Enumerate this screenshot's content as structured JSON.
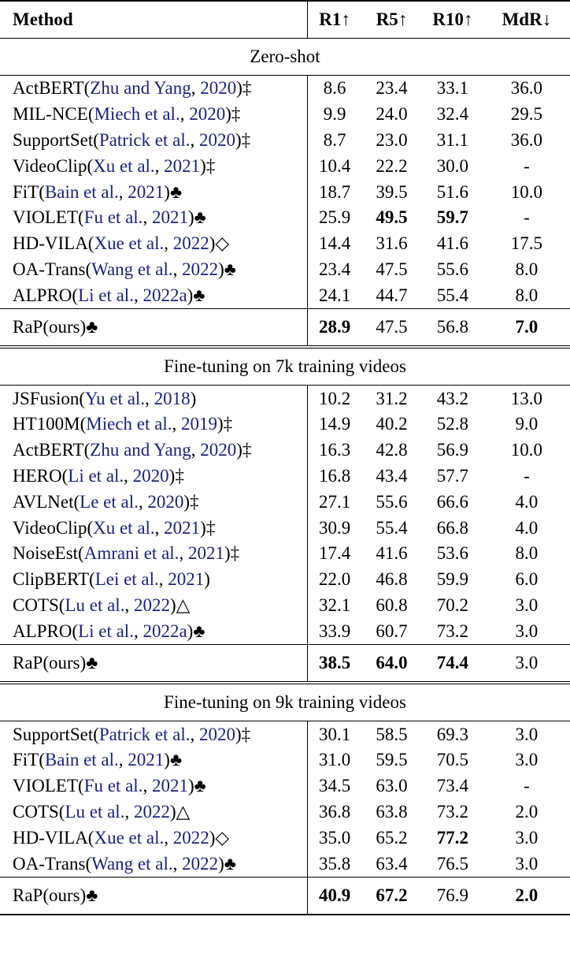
{
  "header": {
    "method": "Method",
    "r1": "R1↑",
    "r5": "R5↑",
    "r10": "R10↑",
    "mdr": "MdR↓"
  },
  "sections": [
    {
      "title": "Zero-shot",
      "rows": [
        {
          "name": "ActBERT(",
          "cite": "Zhu and Yang",
          "sep": ", ",
          "year": "2020",
          "tail": ")‡",
          "r1": "8.6",
          "r5": "23.4",
          "r10": "33.1",
          "mdr": "36.0"
        },
        {
          "name": "MIL-NCE(",
          "cite": "Miech et al.",
          "sep": ", ",
          "year": "2020",
          "tail": ")‡",
          "r1": "9.9",
          "r5": "24.0",
          "r10": "32.4",
          "mdr": "29.5"
        },
        {
          "name": "SupportSet(",
          "cite": "Patrick et al.",
          "sep": ", ",
          "year": "2020",
          "tail": ")‡",
          "r1": "8.7",
          "r5": "23.0",
          "r10": "31.1",
          "mdr": "36.0"
        },
        {
          "name": "VideoClip(",
          "cite": "Xu et al.",
          "sep": ", ",
          "year": "2021",
          "tail": ")‡",
          "r1": "10.4",
          "r5": "22.2",
          "r10": "30.0",
          "mdr": "-"
        },
        {
          "name": "FiT(",
          "cite": "Bain et al.",
          "sep": ", ",
          "year": "2021",
          "tail": ")♣",
          "r1": "18.7",
          "r5": "39.5",
          "r10": "51.6",
          "mdr": "10.0"
        },
        {
          "name": "VIOLET(",
          "cite": "Fu et al.",
          "sep": ", ",
          "year": "2021",
          "tail": ")♣",
          "r1": "25.9",
          "r5": "49.5",
          "r10": "59.7",
          "mdr": "-",
          "bold": [
            "r5",
            "r10"
          ]
        },
        {
          "name": "HD-VILA(",
          "cite": "Xue et al.",
          "sep": ", ",
          "year": "2022",
          "tail": ")◇",
          "r1": "14.4",
          "r5": "31.6",
          "r10": "41.6",
          "mdr": "17.5"
        },
        {
          "name": "OA-Trans(",
          "cite": "Wang et al.",
          "sep": ", ",
          "year": "2022",
          "tail": ")♣",
          "r1": "23.4",
          "r5": "47.5",
          "r10": "55.6",
          "mdr": "8.0"
        },
        {
          "name": "ALPRO(",
          "cite": "Li et al.",
          "sep": ", ",
          "year": "2022a",
          "tail": ")♣",
          "r1": "24.1",
          "r5": "44.7",
          "r10": "55.4",
          "mdr": "8.0"
        }
      ],
      "ours": {
        "name": "RaP(ours)♣",
        "r1": "28.9",
        "r5": "47.5",
        "r10": "56.8",
        "mdr": "7.0",
        "bold": [
          "r1",
          "mdr"
        ]
      }
    },
    {
      "title": "Fine-tuning on 7k training videos",
      "rows": [
        {
          "name": "JSFusion(",
          "cite": "Yu et al.",
          "sep": ", ",
          "year": "2018",
          "tail": ")",
          "r1": "10.2",
          "r5": "31.2",
          "r10": "43.2",
          "mdr": "13.0"
        },
        {
          "name": "HT100M(",
          "cite": "Miech et al.",
          "sep": ", ",
          "year": "2019",
          "tail": ")‡",
          "r1": "14.9",
          "r5": "40.2",
          "r10": "52.8",
          "mdr": "9.0"
        },
        {
          "name": "ActBERT(",
          "cite": "Zhu and Yang",
          "sep": ", ",
          "year": "2020",
          "tail": ")‡",
          "r1": "16.3",
          "r5": "42.8",
          "r10": "56.9",
          "mdr": "10.0"
        },
        {
          "name": "HERO(",
          "cite": "Li et al.",
          "sep": ", ",
          "year": "2020",
          "tail": ")‡",
          "r1": "16.8",
          "r5": "43.4",
          "r10": "57.7",
          "mdr": "-"
        },
        {
          "name": "AVLNet(",
          "cite": "Le et al.",
          "sep": ", ",
          "year": "2020",
          "tail": ")‡",
          "r1": "27.1",
          "r5": "55.6",
          "r10": "66.6",
          "mdr": "4.0"
        },
        {
          "name": "VideoClip(",
          "cite": "Xu et al.",
          "sep": ", ",
          "year": "2021",
          "tail": ")‡",
          "r1": "30.9",
          "r5": "55.4",
          "r10": "66.8",
          "mdr": "4.0"
        },
        {
          "name": "NoiseEst(",
          "cite": "Amrani et al.",
          "sep": ", ",
          "year": "2021",
          "tail": ")‡",
          "r1": "17.4",
          "r5": "41.6",
          "r10": "53.6",
          "mdr": "8.0"
        },
        {
          "name": "ClipBERT(",
          "cite": "Lei et al.",
          "sep": ", ",
          "year": "2021",
          "tail": ")",
          "r1": "22.0",
          "r5": "46.8",
          "r10": "59.9",
          "mdr": "6.0"
        },
        {
          "name": "COTS(",
          "cite": "Lu et al.",
          "sep": ", ",
          "year": "2022",
          "tail": ")△",
          "r1": "32.1",
          "r5": "60.8",
          "r10": "70.2",
          "mdr": "3.0"
        },
        {
          "name": "ALPRO(",
          "cite": "Li et al.",
          "sep": ", ",
          "year": "2022a",
          "tail": ")♣",
          "r1": "33.9",
          "r5": "60.7",
          "r10": "73.2",
          "mdr": "3.0"
        }
      ],
      "ours": {
        "name": "RaP(ours)♣",
        "r1": "38.5",
        "r5": "64.0",
        "r10": "74.4",
        "mdr": "3.0",
        "bold": [
          "r1",
          "r5",
          "r10"
        ]
      }
    },
    {
      "title": "Fine-tuning on 9k training videos",
      "rows": [
        {
          "name": "SupportSet(",
          "cite": "Patrick et al.",
          "sep": ", ",
          "year": "2020",
          "tail": ")‡",
          "r1": "30.1",
          "r5": "58.5",
          "r10": "69.3",
          "mdr": "3.0"
        },
        {
          "name": "FiT(",
          "cite": "Bain et al.",
          "sep": ", ",
          "year": "2021",
          "tail": ")♣",
          "r1": "31.0",
          "r5": "59.5",
          "r10": "70.5",
          "mdr": "3.0"
        },
        {
          "name": "VIOLET(",
          "cite": "Fu et al.",
          "sep": ", ",
          "year": "2021",
          "tail": ")♣",
          "r1": "34.5",
          "r5": "63.0",
          "r10": "73.4",
          "mdr": "-"
        },
        {
          "name": "COTS(",
          "cite": "Lu et al.",
          "sep": ", ",
          "year": "2022",
          "tail": ")△",
          "r1": "36.8",
          "r5": "63.8",
          "r10": "73.2",
          "mdr": "2.0"
        },
        {
          "name": "HD-VILA(",
          "cite": "Xue et al.",
          "sep": ", ",
          "year": "2022",
          "tail": ")◇",
          "r1": "35.0",
          "r5": "65.2",
          "r10": "77.2",
          "mdr": "3.0",
          "bold": [
            "r10"
          ]
        },
        {
          "name": "OA-Trans(",
          "cite": "Wang et al.",
          "sep": ", ",
          "year": "2022",
          "tail": ")♣",
          "r1": "35.8",
          "r5": "63.4",
          "r10": "76.5",
          "mdr": "3.0"
        }
      ],
      "ours": {
        "name": "RaP(ours)♣",
        "r1": "40.9",
        "r5": "67.2",
        "r10": "76.9",
        "mdr": "2.0",
        "bold": [
          "r1",
          "r5",
          "mdr"
        ]
      }
    }
  ]
}
